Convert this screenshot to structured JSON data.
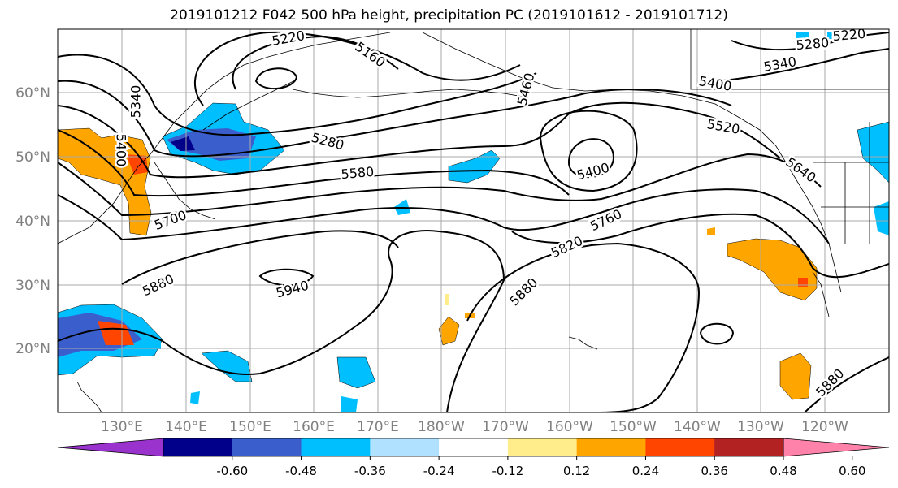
{
  "title": "2019101212 F042 500 hPa height, precipitation PC (2019101612 - 2019101712)",
  "lat_labels": [
    "60°N",
    "50°N",
    "40°N",
    "30°N",
    "20°N"
  ],
  "lon_labels": [
    "130°E",
    "140°E",
    "150°E",
    "160°E",
    "170°E",
    "180°W",
    "170°W",
    "160°W",
    "150°W",
    "140°W",
    "130°W",
    "120°W"
  ],
  "contour_labels": [
    "5220",
    "5160",
    "5340",
    "5400",
    "5280",
    "5580",
    "5700",
    "5880",
    "5940",
    "5460",
    "5400",
    "5520",
    "5640",
    "5760",
    "5820",
    "5880",
    "5280",
    "5220",
    "5340",
    "5400",
    "5880"
  ],
  "colorbar": {
    "colors": [
      "#9a32cd",
      "#00008b",
      "#3a5fcd",
      "#00bfff",
      "#b0e2ff",
      "#ffffff",
      "#ffec8b",
      "#ffa500",
      "#ff4500",
      "#b22222",
      "#ff82ab"
    ],
    "tick_labels": [
      "-0.60",
      "-0.48",
      "-0.36",
      "-0.24",
      "-0.12",
      "0.12",
      "0.24",
      "0.36",
      "0.48",
      "0.60"
    ]
  },
  "colors": {
    "coast": "#000000",
    "grid": "#a9a9a9",
    "contour": "#000000",
    "axis_label": "#808080"
  }
}
